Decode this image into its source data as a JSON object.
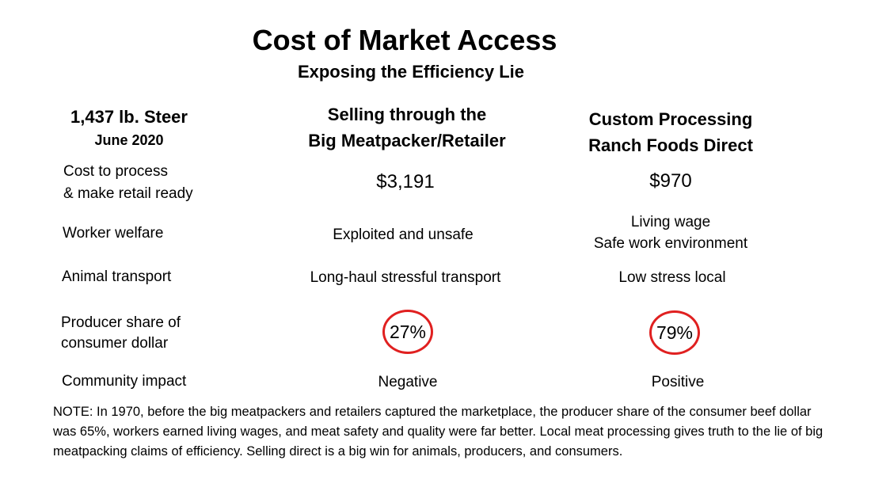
{
  "title": "Cost of Market Access",
  "subtitle": "Exposing the Efficiency Lie",
  "columns": {
    "label": {
      "line1": "1,437 lb. Steer",
      "line2": "June 2020"
    },
    "big": {
      "line1": "Selling through the",
      "line2": "Big Meatpacker/Retailer"
    },
    "custom": {
      "line1": "Custom Processing",
      "line2": "Ranch Foods Direct"
    }
  },
  "rows": {
    "cost": {
      "label_line1": "Cost to process",
      "label_line2": "& make retail ready",
      "big": "$3,191",
      "custom": "$970"
    },
    "worker": {
      "label": "Worker welfare",
      "big": "Exploited and unsafe",
      "custom_line1": "Living wage",
      "custom_line2": "Safe work environment"
    },
    "transport": {
      "label": "Animal transport",
      "big": "Long-haul stressful transport",
      "custom": "Low stress local"
    },
    "share": {
      "label_line1": "Producer share of",
      "label_line2": "consumer dollar",
      "big": "27%",
      "custom": "79%"
    },
    "community": {
      "label": "Community impact",
      "big": "Negative",
      "custom": "Positive"
    }
  },
  "note": "NOTE: In 1970, before the big meatpackers and retailers captured the marketplace, the producer share of the consumer beef dollar was 65%, workers earned living wages, and meat safety and quality were far better. Local meat processing gives truth to the lie of big meatpacking claims of efficiency. Selling direct is a big win for animals, producers, and consumers.",
  "colors": {
    "highlight_circle": "#e02020",
    "text": "#000000",
    "background": "#ffffff"
  }
}
